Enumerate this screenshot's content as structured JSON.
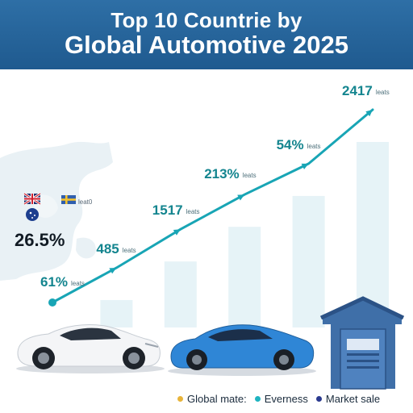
{
  "header": {
    "title_line1": "Top 10 Countrie by",
    "title_line2": "Global Automotive 2025"
  },
  "side_label": {
    "flag_caption": "leat0",
    "value": "26.5%"
  },
  "colors": {
    "header_bg": "#26659b",
    "line": "#18a5b5",
    "bar": "#e6f3f7",
    "label_text": "#14858f",
    "garage": "#3f6fa8",
    "legend_gold": "#e8b43a",
    "legend_teal": "#1fb3c0",
    "legend_navy": "#2b3a8f"
  },
  "icons": [
    "uk-flag-icon",
    "sweden-flag-icon",
    "australia-flag-icon",
    "white-sports-car-icon",
    "blue-sedan-icon",
    "garage-icon",
    "world-map-icon"
  ],
  "chart_data": {
    "type": "line",
    "title": "Top 10 Countrie by Global Automotive 2025",
    "xlabel": "",
    "ylabel": "",
    "grid": false,
    "legend_placement": "bottom-right",
    "points": [
      {
        "label": "61%",
        "suffix": "leats"
      },
      {
        "label": "485",
        "suffix": "leats"
      },
      {
        "label": "1517",
        "suffix": "leats"
      },
      {
        "label": "213%",
        "suffix": "leats"
      },
      {
        "label": "54%",
        "suffix": "leats"
      },
      {
        "label": "2417",
        "suffix": "leats"
      }
    ],
    "series": [
      {
        "values": [
          0,
          18,
          38,
          56,
          72,
          100
        ]
      }
    ],
    "legend": [
      {
        "label": "Global mate:",
        "color": "#e8b43a"
      },
      {
        "label": "Everness",
        "color": "#1fb3c0"
      },
      {
        "label": "Market sale",
        "color": "#2b3a8f"
      }
    ]
  }
}
